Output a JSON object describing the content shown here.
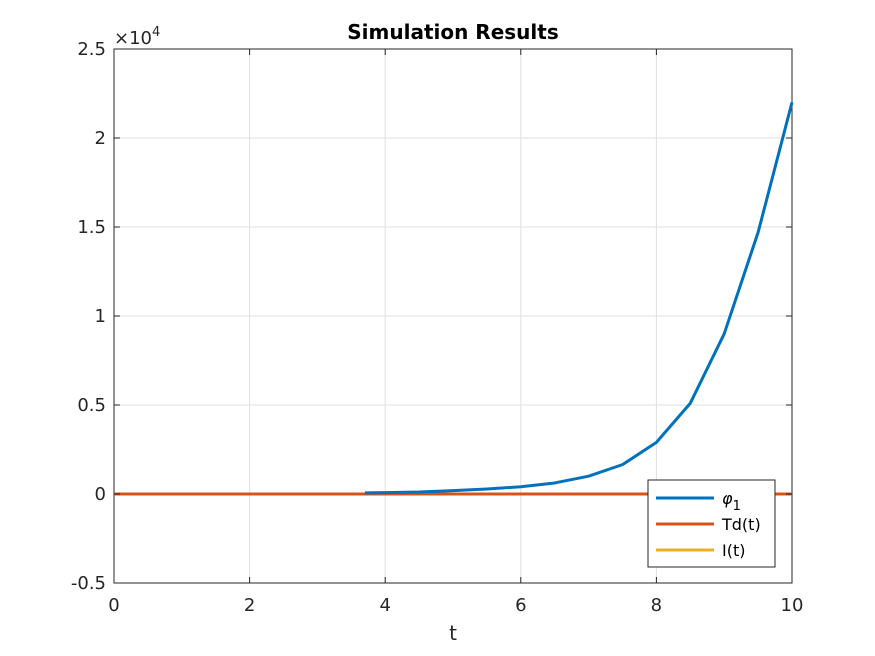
{
  "chart_data": {
    "type": "line",
    "title": "Simulation Results",
    "xlabel": "t",
    "ylabel": "",
    "xlim": [
      0,
      10
    ],
    "ylim": [
      -5000,
      25000
    ],
    "x_ticks": [
      0,
      2,
      4,
      6,
      8,
      10
    ],
    "x_tick_labels": [
      "0",
      "2",
      "4",
      "6",
      "8",
      "10"
    ],
    "y_ticks": [
      -5000,
      0,
      5000,
      10000,
      15000,
      20000,
      25000
    ],
    "y_tick_labels": [
      "-0.5",
      "0",
      "0.5",
      "1",
      "1.5",
      "2",
      "2.5"
    ],
    "y_exponent_label": "×10",
    "y_exponent_power": "4",
    "grid": true,
    "legend_position": "bottom-right",
    "series": [
      {
        "name": "φ",
        "name_subscript": "1",
        "color": "#0072BD",
        "x": [
          3.7,
          4.0,
          4.5,
          5.0,
          5.5,
          6.0,
          6.5,
          7.0,
          7.5,
          8.0,
          8.5,
          9.0,
          9.5,
          10.0
        ],
        "y": [
          60,
          80,
          110,
          190,
          280,
          410,
          620,
          1000,
          1650,
          2900,
          5100,
          9000,
          14700,
          22000
        ]
      },
      {
        "name": "Td(t)",
        "color": "#D95319",
        "x": [
          0,
          10
        ],
        "y": [
          0,
          0
        ]
      },
      {
        "name": "I(t)",
        "color": "#EDB120",
        "x": [
          0,
          10
        ],
        "y": [
          0,
          0
        ]
      }
    ]
  }
}
